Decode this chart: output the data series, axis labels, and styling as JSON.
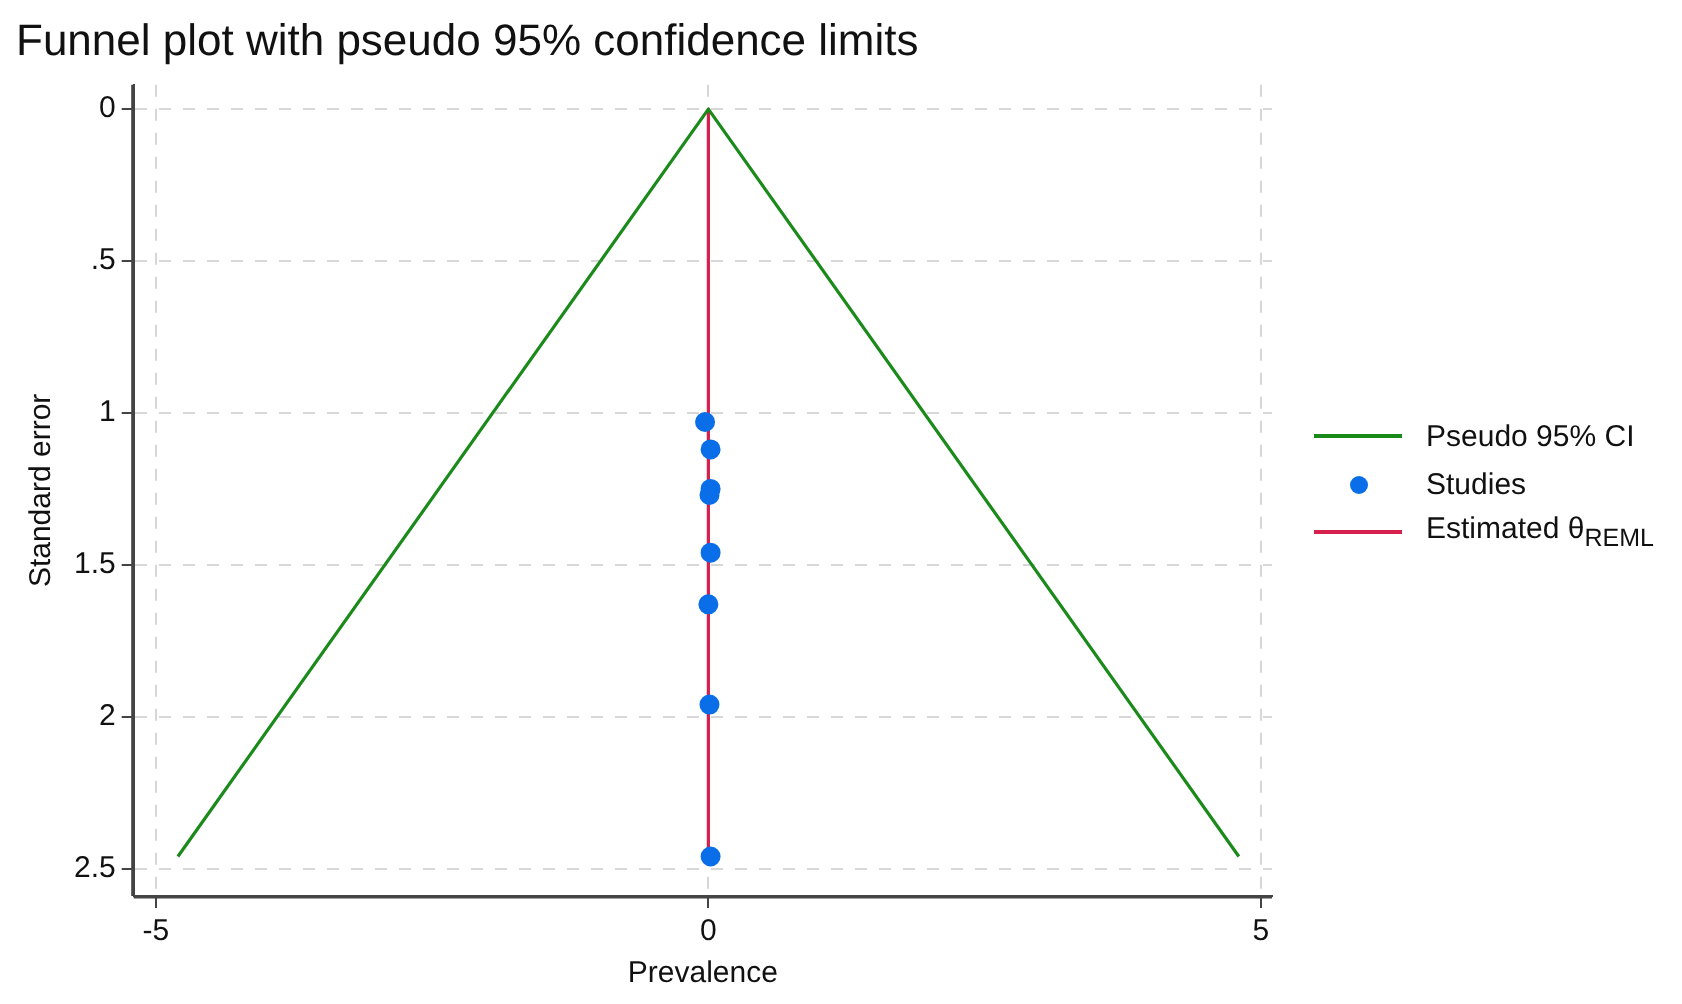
{
  "chart_data": {
    "type": "scatter",
    "title": "Funnel plot with pseudo 95% confidence limits",
    "xlabel": "Prevalence",
    "ylabel": "Standard error",
    "xlim": [
      -5.2,
      5.1
    ],
    "xticks": [
      -5,
      0,
      5
    ],
    "ylim": [
      2.59,
      -0.08
    ],
    "yticks": [
      0,
      {
        "value": 0.5,
        "label": ".5"
      },
      1,
      1.5,
      2,
      2.5
    ],
    "grid": true,
    "legend": "right",
    "series": [
      {
        "name": "Pseudo 95% CI",
        "type": "line",
        "marker": "none",
        "color": "#1a8a1a",
        "x": [
          -4.8,
          0,
          4.8
        ],
        "values": [
          2.46,
          0,
          2.46
        ]
      },
      {
        "name": "Studies",
        "type": "scatter",
        "marker": "circle",
        "color": "#0a6ee8",
        "x": [
          -0.03,
          0.02,
          0.02,
          0.01,
          0.02,
          0.0,
          0.01,
          0.02
        ],
        "values": [
          1.03,
          1.12,
          1.25,
          1.27,
          1.46,
          1.63,
          1.96,
          2.46
        ]
      },
      {
        "name": "Estimated θ$_{REML}$",
        "type": "line",
        "marker": "none",
        "color": "#d6204e",
        "x": [
          0.0,
          0.0
        ],
        "values": [
          0,
          2.46
        ]
      }
    ]
  }
}
